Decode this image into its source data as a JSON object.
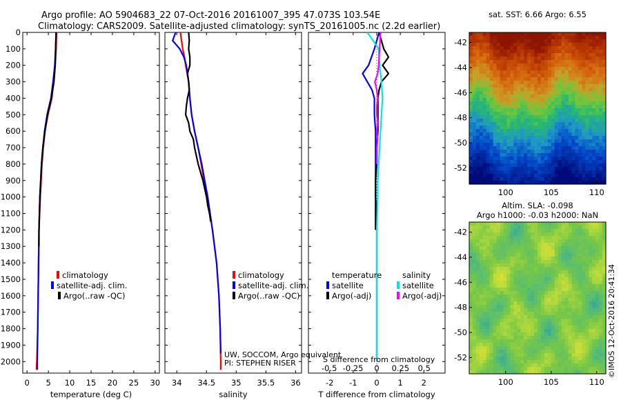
{
  "header": {
    "title_line1": "Argo profile: AO 5904683_22 07-Oct-2016 20161007_395 47.073S 103.54E",
    "title_line2": "Climatology: CARS2009. Satellite-adjusted climatology: synTS_20161005.nc (2.2d earlier)"
  },
  "colors": {
    "climatology": "#ff0000",
    "satellite_adj": "#0000ff",
    "argo": "#000000",
    "salinity_satellite": "#00e5ee",
    "salinity_argo": "#ff00ff"
  },
  "depth_ticks": [
    "0",
    "100",
    "200",
    "300",
    "400",
    "500",
    "600",
    "700",
    "800",
    "900",
    "1000",
    "1100",
    "1200",
    "1300",
    "1400",
    "1500",
    "1600",
    "1700",
    "1800",
    "1900",
    "2000"
  ],
  "legend": {
    "climatology": "climatology",
    "satellite_adj": "satellite-adj. clim.",
    "argo": "Argo(..raw -QC)"
  },
  "difference_legend": {
    "temperature_header": "temperature",
    "salinity_header": "salinity",
    "satellite": "satellite",
    "argo": "Argo(-adj)"
  },
  "notes": {
    "float_owner": "UW, SOCCOM, Argo equivalent",
    "pi": "PI: STEPHEN RISER",
    "s_diff_label": "S difference from climatology",
    "timestamp": "©IMOS 12-Oct-2016 20:41:34"
  },
  "maps": {
    "sst": {
      "title": "sat. SST: 6.66 Argo: 6.55",
      "lat_ticks": [
        "-42",
        "-44",
        "-46",
        "-48",
        "-50",
        "-52"
      ],
      "lon_ticks": [
        "100",
        "105",
        "110"
      ]
    },
    "sla": {
      "title_line1": "Altim. SLA: -0.098",
      "title_line2": "Argo h1000: -0.03 h2000: NaN",
      "lat_ticks": [
        "-42",
        "-44",
        "-46",
        "-48",
        "-50",
        "-52"
      ],
      "lon_ticks": [
        "100",
        "105",
        "110"
      ]
    }
  },
  "chart_data": [
    {
      "type": "line",
      "xlabel": "temperature (deg C)",
      "ylabel": "",
      "xlim": [
        -1,
        31
      ],
      "ylim": [
        2070,
        0
      ],
      "x_ticks": [
        "0",
        "5",
        "10",
        "15",
        "20",
        "25",
        "30"
      ],
      "x_tick_values": [
        0,
        5,
        10,
        15,
        20,
        25,
        30
      ],
      "series": [
        {
          "name": "climatology",
          "color": "#ff0000",
          "depth": [
            0,
            100,
            200,
            300,
            400,
            500,
            600,
            700,
            800,
            900,
            1000,
            1200,
            1400,
            1600,
            1800,
            2000,
            2050
          ],
          "values": [
            6.9,
            6.8,
            6.6,
            6.2,
            5.8,
            4.9,
            4.2,
            3.8,
            3.5,
            3.3,
            3.1,
            2.8,
            2.7,
            2.6,
            2.5,
            2.3,
            2.2
          ]
        },
        {
          "name": "satellite-adj. clim.",
          "color": "#0000ff",
          "depth": [
            0,
            100,
            200,
            300,
            400,
            500,
            600,
            700,
            800,
            900,
            1000,
            1200,
            1400,
            1600,
            1800,
            2000,
            2050
          ],
          "values": [
            6.8,
            6.7,
            6.5,
            6.1,
            5.6,
            4.7,
            4.1,
            3.7,
            3.4,
            3.2,
            3.0,
            2.8,
            2.7,
            2.6,
            2.5,
            2.4,
            2.4
          ]
        },
        {
          "name": "Argo(..raw -QC)",
          "color": "#000000",
          "depth": [
            0,
            100,
            200,
            300,
            400,
            500,
            600,
            700,
            800,
            900,
            1000,
            1100,
            1200,
            1300
          ],
          "values": [
            6.8,
            6.7,
            6.6,
            6.3,
            5.7,
            4.8,
            4.2,
            3.7,
            3.4,
            3.2,
            3.0,
            2.9,
            2.8,
            2.8
          ]
        }
      ]
    },
    {
      "type": "line",
      "xlabel": "salinity",
      "ylabel": "",
      "xlim": [
        33.8,
        36.1
      ],
      "ylim": [
        2070,
        0
      ],
      "x_ticks": [
        "34",
        "34.5",
        "35",
        "35.5",
        "36"
      ],
      "x_tick_values": [
        34,
        34.5,
        35,
        35.5,
        36
      ],
      "series": [
        {
          "name": "climatology",
          "color": "#ff0000",
          "depth": [
            0,
            50,
            100,
            150,
            200,
            300,
            400,
            500,
            600,
            700,
            800,
            900,
            1000,
            1200,
            1400,
            1600,
            1800,
            2000,
            2050
          ],
          "values": [
            34.06,
            34.08,
            34.1,
            34.13,
            34.15,
            34.2,
            34.22,
            34.25,
            34.3,
            34.36,
            34.41,
            34.46,
            34.52,
            34.6,
            34.67,
            34.71,
            34.73,
            34.74,
            34.74
          ]
        },
        {
          "name": "satellite-adj. clim.",
          "color": "#0000ff",
          "depth": [
            0,
            50,
            100,
            150,
            200,
            300,
            400,
            500,
            600,
            700,
            800,
            900,
            1000,
            1200,
            1400,
            1600,
            1800,
            1950
          ],
          "values": [
            33.98,
            33.93,
            34.05,
            34.12,
            34.16,
            34.2,
            34.22,
            34.25,
            34.3,
            34.36,
            34.42,
            34.47,
            34.52,
            34.6,
            34.67,
            34.71,
            34.73,
            34.74
          ]
        },
        {
          "name": "Argo(..raw -QC)",
          "color": "#000000",
          "depth": [
            0,
            50,
            100,
            150,
            200,
            250,
            300,
            350,
            400,
            450,
            500,
            550,
            600,
            650,
            700,
            750,
            800,
            850,
            900,
            950,
            1000,
            1050,
            1100,
            1150
          ],
          "values": [
            34.2,
            34.21,
            34.2,
            34.22,
            34.22,
            34.18,
            34.2,
            34.21,
            34.18,
            34.16,
            34.15,
            34.2,
            34.22,
            34.28,
            34.3,
            34.33,
            34.36,
            34.4,
            34.44,
            34.47,
            34.5,
            34.52,
            34.55,
            34.57
          ]
        }
      ]
    },
    {
      "type": "line",
      "xlabel": "T difference from climatology",
      "ylabel": "",
      "xlim": [
        -2.9,
        2.9
      ],
      "ylim": [
        2070,
        0
      ],
      "x_ticks": [
        "-2",
        "-1",
        "0",
        "1",
        "2"
      ],
      "x_tick_values": [
        -2,
        -1,
        0,
        1,
        2
      ],
      "s_ticks": [
        "-0.5",
        "-0.25",
        "0",
        "0.25",
        "0.5"
      ],
      "s_tick_values": [
        -0.5,
        -0.25,
        0,
        0.25,
        0.5
      ],
      "series": [
        {
          "name": "temperature satellite",
          "color": "#0000ff",
          "unit": "T",
          "depth": [
            0,
            100,
            200,
            250,
            300,
            350,
            400,
            500,
            600,
            700,
            800,
            900,
            1000,
            1100,
            1200,
            1400,
            1600,
            1800,
            2000
          ],
          "values": [
            0.1,
            -0.1,
            -0.35,
            -0.6,
            -0.4,
            -0.2,
            -0.1,
            -0.1,
            -0.05,
            -0.05,
            -0.05,
            -0.05,
            -0.05,
            0,
            0,
            0,
            0,
            0,
            0
          ]
        },
        {
          "name": "temperature Argo(-adj)",
          "color": "#000000",
          "unit": "T",
          "depth": [
            0,
            100,
            150,
            200,
            250,
            300,
            350,
            400,
            500,
            600,
            700,
            800,
            900,
            1000,
            1100,
            1200
          ],
          "values": [
            0.1,
            0.3,
            0.5,
            0.25,
            0.5,
            0.2,
            0.1,
            0.05,
            0.05,
            0.05,
            0,
            0,
            -0.05,
            -0.05,
            -0.05,
            -0.05
          ]
        },
        {
          "name": "salinity satellite",
          "color": "#00e5ee",
          "unit": "S",
          "depth": [
            0,
            40,
            100,
            200,
            300,
            400,
            500,
            600,
            700,
            800,
            900,
            1000,
            1200,
            1400,
            1600,
            1800,
            2000
          ],
          "values": [
            -0.1,
            -0.05,
            0.02,
            0.03,
            0.05,
            0.06,
            0.05,
            0.04,
            0.03,
            0.02,
            0.01,
            0.01,
            0.0,
            0.0,
            0.0,
            0.0,
            0.0
          ]
        },
        {
          "name": "salinity Argo(-adj)",
          "color": "#ff00ff",
          "unit": "S",
          "depth": [
            0,
            100,
            200,
            250,
            300,
            350,
            400,
            450,
            500,
            550,
            600,
            650,
            700,
            750,
            800
          ],
          "values": [
            0.04,
            0.03,
            0.02,
            0.01,
            -0.02,
            0.0,
            0.01,
            0.0,
            0.0,
            0.01,
            0.0,
            0.01,
            0.0,
            0.0,
            0.0
          ]
        }
      ]
    },
    {
      "type": "heatmap",
      "title": "sat. SST: 6.66 Argo: 6.55",
      "xlim": [
        96,
        111
      ],
      "ylim": [
        -53.3,
        -41.2
      ]
    },
    {
      "type": "heatmap",
      "title": "Altim. SLA: -0.098",
      "xlim": [
        96,
        111
      ],
      "ylim": [
        -53.3,
        -41.2
      ]
    }
  ]
}
